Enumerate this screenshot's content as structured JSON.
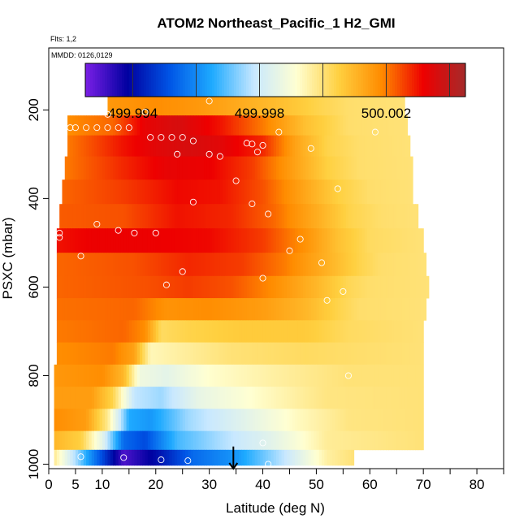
{
  "chart_data": {
    "type": "heatmap",
    "title": "ATOM2 Northeast_Pacific_1 H2_GMI",
    "corner_notes": [
      "Flts: 1,2",
      "MMDD: 0126,0129"
    ],
    "xlabel": "Latitude (deg N)",
    "ylabel": "PSXC (mbar)",
    "xlim": [
      0,
      85
    ],
    "ylim": [
      1010,
      60
    ],
    "y_reversed": true,
    "x_ticks": [
      0,
      5,
      10,
      20,
      30,
      40,
      50,
      60,
      70,
      80
    ],
    "x_minor_ticks": [
      15,
      25,
      35,
      45,
      55,
      65,
      75,
      85
    ],
    "y_ticks": [
      200,
      400,
      600,
      800,
      1000
    ],
    "colorbar": {
      "min": 499.9925,
      "max": 500.0045,
      "tick_labels": [
        "499.994",
        "499.998",
        "500.002"
      ],
      "tick_values": [
        499.994,
        499.998,
        500.002
      ],
      "separators": [
        499.994,
        499.996,
        499.998,
        500.0,
        500.002,
        500.004
      ],
      "color_stops": [
        "#7B1FE6",
        "#0000A0",
        "#0055E6",
        "#1EAAFF",
        "#C8E8FF",
        "#FFFFD2",
        "#FFD040",
        "#FF8C00",
        "#EE0000",
        "#A52A2A"
      ]
    },
    "layers": [
      {
        "p": 985,
        "x0": 1.0,
        "x1": 57.0,
        "values": [
          [
            1,
            499.9998
          ],
          [
            8,
            499.996
          ],
          [
            14,
            499.993
          ],
          [
            20,
            499.994
          ],
          [
            27,
            499.9955
          ],
          [
            35,
            499.9962
          ],
          [
            44,
            499.9978
          ],
          [
            52,
            499.9996
          ],
          [
            57,
            500.0
          ]
        ]
      },
      {
        "p": 950,
        "x0": 1.0,
        "x1": 70.0,
        "values": [
          [
            1,
            500.001
          ],
          [
            6,
            500.0005
          ],
          [
            10,
            499.9985
          ],
          [
            14,
            499.9955
          ],
          [
            18,
            499.995
          ],
          [
            24,
            499.9968
          ],
          [
            32,
            499.9976
          ],
          [
            42,
            499.9985
          ],
          [
            52,
            499.9997
          ],
          [
            70,
            500.0
          ]
        ]
      },
      {
        "p": 900,
        "x0": 1.0,
        "x1": 70.0,
        "values": [
          [
            1,
            500.0018
          ],
          [
            7,
            500.0015
          ],
          [
            11,
            499.9998
          ],
          [
            15,
            499.9965
          ],
          [
            19,
            499.9962
          ],
          [
            26,
            499.9975
          ],
          [
            36,
            499.9984
          ],
          [
            46,
            499.9993
          ],
          [
            56,
            499.9999
          ],
          [
            70,
            500.0
          ]
        ]
      },
      {
        "p": 850,
        "x0": 1.0,
        "x1": 70.0,
        "values": [
          [
            1,
            500.0015
          ],
          [
            8,
            500.0015
          ],
          [
            12,
            500.0004
          ],
          [
            16,
            499.9978
          ],
          [
            21,
            499.9975
          ],
          [
            28,
            499.9986
          ],
          [
            40,
            499.9993
          ],
          [
            52,
            499.9999
          ],
          [
            70,
            500.0
          ]
        ]
      },
      {
        "p": 800,
        "x0": 1.0,
        "x1": 70.0,
        "values": [
          [
            1,
            500.0016
          ],
          [
            10,
            500.0018
          ],
          [
            14,
            500.001
          ],
          [
            17,
            499.9988
          ],
          [
            22,
            499.9985
          ],
          [
            30,
            499.9992
          ],
          [
            42,
            499.9996
          ],
          [
            56,
            500.0
          ],
          [
            70,
            500.0
          ]
        ]
      },
      {
        "p": 750,
        "x0": 1.5,
        "x1": 70.0,
        "values": [
          [
            1.5,
            500.0018
          ],
          [
            12,
            500.002
          ],
          [
            16,
            500.0014
          ],
          [
            19,
            499.9994
          ],
          [
            24,
            499.9996
          ],
          [
            34,
            500.0
          ],
          [
            48,
            500.0002
          ],
          [
            58,
            500.0001
          ],
          [
            70,
            500.0
          ]
        ]
      },
      {
        "p": 700,
        "x0": 1.5,
        "x1": 70.0,
        "values": [
          [
            1.5,
            500.002
          ],
          [
            14,
            500.0022
          ],
          [
            18,
            500.0018
          ],
          [
            21,
            500.0002
          ],
          [
            26,
            500.0004
          ],
          [
            36,
            500.0006
          ],
          [
            48,
            500.0006
          ],
          [
            56,
            500.0002
          ],
          [
            70,
            500.0
          ]
        ]
      },
      {
        "p": 650,
        "x0": 1.5,
        "x1": 70.5,
        "values": [
          [
            1.5,
            500.0021
          ],
          [
            16,
            500.0022
          ],
          [
            22,
            500.0017
          ],
          [
            30,
            500.0018
          ],
          [
            40,
            500.0015
          ],
          [
            48,
            500.001
          ],
          [
            54,
            500.0004
          ],
          [
            58,
            500.0001
          ],
          [
            70,
            500.0
          ]
        ]
      },
      {
        "p": 600,
        "x0": 1.5,
        "x1": 71.0,
        "values": [
          [
            1.5,
            500.0022
          ],
          [
            18,
            500.0024
          ],
          [
            26,
            500.0026
          ],
          [
            34,
            500.0024
          ],
          [
            42,
            500.0018
          ],
          [
            50,
            500.001
          ],
          [
            56,
            500.0003
          ],
          [
            60,
            500.0001
          ],
          [
            71,
            500.0
          ]
        ]
      },
      {
        "p": 550,
        "x0": 1.5,
        "x1": 70.5,
        "values": [
          [
            1.5,
            500.0022
          ],
          [
            16,
            500.0024
          ],
          [
            26,
            500.0028
          ],
          [
            36,
            500.0026
          ],
          [
            44,
            500.002
          ],
          [
            52,
            500.0011
          ],
          [
            58,
            500.0004
          ],
          [
            62,
            500.0001
          ],
          [
            70,
            500.0
          ]
        ]
      },
      {
        "p": 495,
        "x0": 1.5,
        "x1": 70.0,
        "values": [
          [
            1.5,
            500.003
          ],
          [
            8,
            500.0032
          ],
          [
            18,
            500.0032
          ],
          [
            30,
            500.0031
          ],
          [
            40,
            500.0026
          ],
          [
            48,
            500.0017
          ],
          [
            54,
            500.0008
          ],
          [
            60,
            500.0002
          ],
          [
            70,
            500.0
          ]
        ]
      },
      {
        "p": 440,
        "x0": 2.0,
        "x1": 69.0,
        "values": [
          [
            2,
            500.0023
          ],
          [
            14,
            500.0024
          ],
          [
            24,
            500.003
          ],
          [
            34,
            500.0028
          ],
          [
            42,
            500.0022
          ],
          [
            50,
            500.0012
          ],
          [
            56,
            500.0004
          ],
          [
            62,
            500.0001
          ],
          [
            69,
            500.0
          ]
        ]
      },
      {
        "p": 385,
        "x0": 2.5,
        "x1": 68.0,
        "values": [
          [
            2.5,
            500.0022
          ],
          [
            14,
            500.0026
          ],
          [
            24,
            500.0031
          ],
          [
            32,
            500.003
          ],
          [
            40,
            500.0024
          ],
          [
            48,
            500.0013
          ],
          [
            54,
            500.0005
          ],
          [
            60,
            500.0001
          ],
          [
            68,
            500.0
          ]
        ]
      },
      {
        "p": 330,
        "x0": 3.0,
        "x1": 68.0,
        "values": [
          [
            3,
            500.002
          ],
          [
            14,
            500.0028
          ],
          [
            22,
            500.0033
          ],
          [
            30,
            500.0032
          ],
          [
            38,
            500.0026
          ],
          [
            46,
            500.0014
          ],
          [
            52,
            500.0005
          ],
          [
            58,
            500.0001
          ],
          [
            68,
            500.0
          ]
        ]
      },
      {
        "p": 280,
        "x0": 3.5,
        "x1": 67.5,
        "values": [
          [
            3.5,
            500.002
          ],
          [
            14,
            500.003
          ],
          [
            20,
            500.0034
          ],
          [
            26,
            500.0036
          ],
          [
            32,
            500.0034
          ],
          [
            40,
            500.0028
          ],
          [
            46,
            500.0014
          ],
          [
            52,
            500.0004
          ],
          [
            58,
            500.0001
          ],
          [
            67,
            500.0
          ]
        ]
      },
      {
        "p": 235,
        "x0": 3.5,
        "x1": 67.0,
        "values": [
          [
            3.5,
            500.0018
          ],
          [
            12,
            500.0022
          ],
          [
            18,
            500.0033
          ],
          [
            24,
            500.0036
          ],
          [
            32,
            500.003
          ],
          [
            40,
            500.002
          ],
          [
            48,
            500.0008
          ],
          [
            56,
            500.0001
          ],
          [
            67,
            500.0
          ]
        ]
      },
      {
        "p": 190,
        "x0": 11.0,
        "x1": 66.5,
        "values": [
          [
            11,
            500.0016
          ],
          [
            20,
            500.0018
          ],
          [
            28,
            500.0016
          ],
          [
            36,
            500.0012
          ],
          [
            44,
            500.0008
          ],
          [
            50,
            500.0004
          ],
          [
            56,
            500.0001
          ],
          [
            66,
            500.0
          ]
        ]
      }
    ],
    "points": [
      [
        11,
        210
      ],
      [
        18,
        205
      ],
      [
        30,
        180
      ],
      [
        4,
        240
      ],
      [
        5,
        240
      ],
      [
        7,
        240
      ],
      [
        9,
        240
      ],
      [
        11,
        240
      ],
      [
        13,
        240
      ],
      [
        15,
        240
      ],
      [
        19,
        262
      ],
      [
        21,
        262
      ],
      [
        23,
        262
      ],
      [
        25,
        262
      ],
      [
        27,
        270
      ],
      [
        24,
        300
      ],
      [
        30,
        300
      ],
      [
        32,
        305
      ],
      [
        37,
        275
      ],
      [
        38,
        277
      ],
      [
        40,
        280
      ],
      [
        39,
        295
      ],
      [
        43,
        250
      ],
      [
        49,
        287
      ],
      [
        61,
        250
      ],
      [
        35,
        360
      ],
      [
        54,
        378
      ],
      [
        27,
        408
      ],
      [
        38,
        412
      ],
      [
        41,
        435
      ],
      [
        9,
        458
      ],
      [
        13,
        472
      ],
      [
        16,
        478
      ],
      [
        20,
        478
      ],
      [
        2,
        478
      ],
      [
        2,
        488
      ],
      [
        47,
        492
      ],
      [
        45,
        518
      ],
      [
        6,
        530
      ],
      [
        51,
        545
      ],
      [
        25,
        565
      ],
      [
        22,
        595
      ],
      [
        40,
        580
      ],
      [
        52,
        630
      ],
      [
        55,
        610
      ],
      [
        56,
        800
      ],
      [
        6,
        983
      ],
      [
        14,
        985
      ],
      [
        21,
        990
      ],
      [
        26,
        992
      ],
      [
        40,
        952
      ],
      [
        41,
        1000
      ]
    ],
    "marker": {
      "x": 34.5,
      "p_from": 960,
      "p_to": 1010
    }
  }
}
